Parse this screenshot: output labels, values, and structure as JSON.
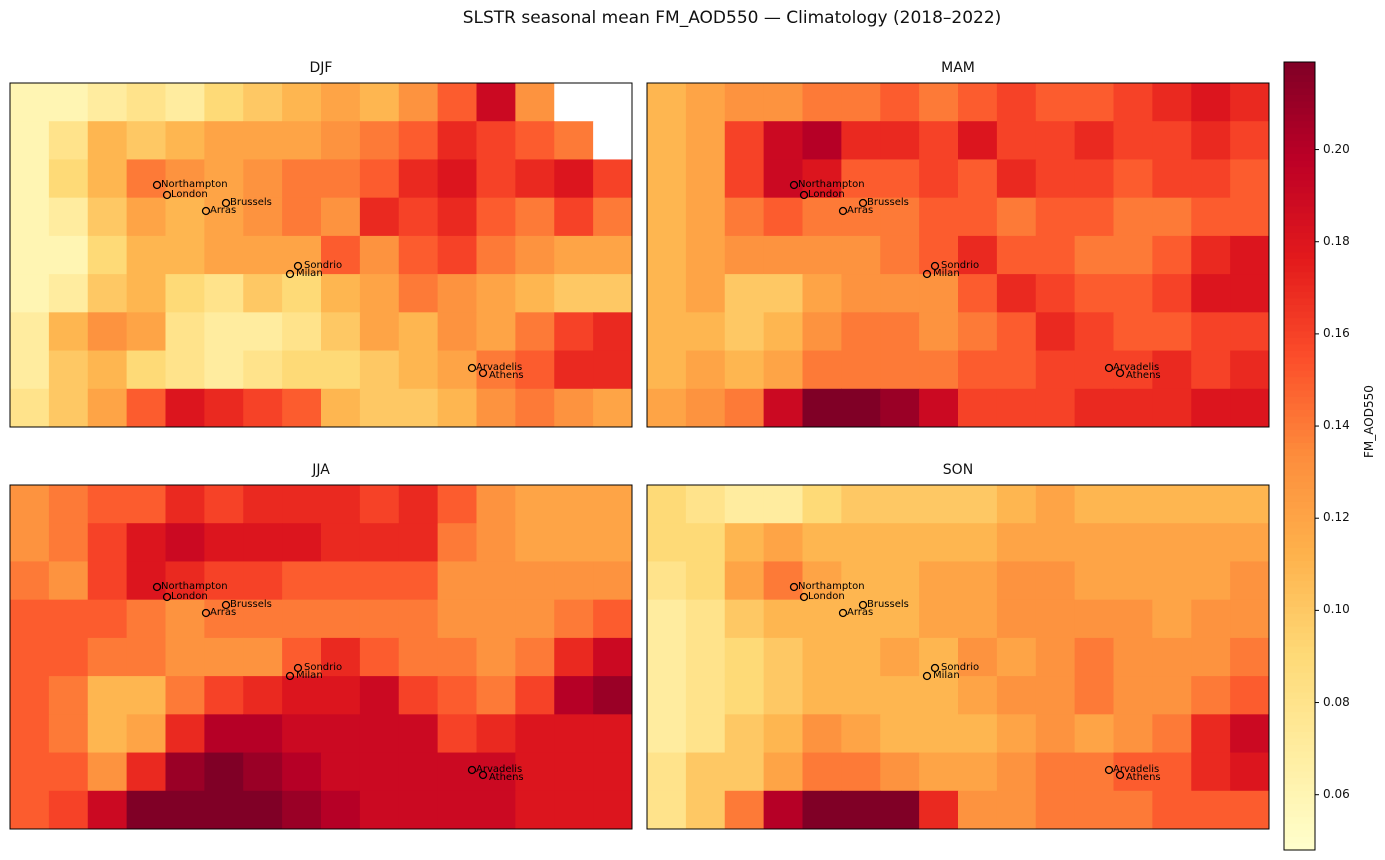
{
  "chart_data": {
    "type": "heatmap",
    "title": "SLSTR seasonal mean FM_AOD550 — Climatology (2018–2022)",
    "colorbar": {
      "label": "FM_AOD550",
      "range": [
        0.048,
        0.219
      ],
      "colormap": "YlOrRd",
      "ticks": [
        "0.06",
        "0.08",
        "0.10",
        "0.12",
        "0.14",
        "0.16",
        "0.18",
        "0.20"
      ],
      "tick_values": [
        0.06,
        0.08,
        0.1,
        0.12,
        0.14,
        0.16,
        0.18,
        0.2
      ]
    },
    "cities": [
      "Northampton",
      "London",
      "Brussels",
      "Arras",
      "Sondrio",
      "Milan",
      "Arvadelis",
      "Athens"
    ],
    "panels": [
      {
        "title": "DJF",
        "grid": [
          [
            0.06,
            0.06,
            0.07,
            0.08,
            0.07,
            0.09,
            0.1,
            0.11,
            0.12,
            0.11,
            0.13,
            0.15,
            0.19,
            0.13,
            null,
            null
          ],
          [
            0.06,
            0.08,
            0.11,
            0.1,
            0.11,
            0.12,
            0.12,
            0.12,
            0.13,
            0.14,
            0.15,
            0.17,
            0.16,
            0.15,
            0.14,
            null
          ],
          [
            0.06,
            0.09,
            0.11,
            0.14,
            0.13,
            0.12,
            0.13,
            0.14,
            0.14,
            0.15,
            0.17,
            0.18,
            0.16,
            0.17,
            0.18,
            0.16
          ],
          [
            0.06,
            0.07,
            0.1,
            0.12,
            0.11,
            0.12,
            0.13,
            0.14,
            0.13,
            0.17,
            0.16,
            0.17,
            0.15,
            0.14,
            0.16,
            0.14
          ],
          [
            0.06,
            0.06,
            0.09,
            0.11,
            0.11,
            0.12,
            0.12,
            0.12,
            0.15,
            0.13,
            0.15,
            0.16,
            0.14,
            0.13,
            0.12,
            0.12
          ],
          [
            0.06,
            0.07,
            0.1,
            0.11,
            0.09,
            0.08,
            0.1,
            0.09,
            0.11,
            0.12,
            0.14,
            0.13,
            0.12,
            0.11,
            0.1,
            0.1
          ],
          [
            0.07,
            0.11,
            0.13,
            0.12,
            0.08,
            0.07,
            0.07,
            0.08,
            0.1,
            0.12,
            0.11,
            0.13,
            0.12,
            0.14,
            0.16,
            0.17
          ],
          [
            0.07,
            0.1,
            0.11,
            0.09,
            0.08,
            0.07,
            0.08,
            0.09,
            0.09,
            0.1,
            0.11,
            0.12,
            0.14,
            0.15,
            0.17,
            0.17
          ],
          [
            0.08,
            0.1,
            0.12,
            0.15,
            0.18,
            0.17,
            0.16,
            0.15,
            0.11,
            0.1,
            0.1,
            0.11,
            0.13,
            0.14,
            0.13,
            0.12
          ]
        ]
      },
      {
        "title": "MAM",
        "grid": [
          [
            0.11,
            0.12,
            0.13,
            0.13,
            0.14,
            0.14,
            0.15,
            0.14,
            0.15,
            0.16,
            0.15,
            0.15,
            0.16,
            0.17,
            0.18,
            0.17
          ],
          [
            0.11,
            0.12,
            0.16,
            0.19,
            0.2,
            0.17,
            0.17,
            0.16,
            0.18,
            0.16,
            0.16,
            0.17,
            0.16,
            0.16,
            0.17,
            0.16
          ],
          [
            0.11,
            0.12,
            0.16,
            0.19,
            0.18,
            0.15,
            0.15,
            0.16,
            0.15,
            0.17,
            0.16,
            0.16,
            0.15,
            0.16,
            0.16,
            0.15
          ],
          [
            0.11,
            0.12,
            0.14,
            0.15,
            0.14,
            0.14,
            0.14,
            0.15,
            0.15,
            0.14,
            0.15,
            0.15,
            0.14,
            0.14,
            0.15,
            0.15
          ],
          [
            0.11,
            0.12,
            0.13,
            0.13,
            0.13,
            0.13,
            0.14,
            0.15,
            0.17,
            0.15,
            0.15,
            0.14,
            0.14,
            0.15,
            0.17,
            0.18
          ],
          [
            0.11,
            0.12,
            0.1,
            0.1,
            0.12,
            0.13,
            0.13,
            0.13,
            0.15,
            0.17,
            0.16,
            0.15,
            0.15,
            0.16,
            0.18,
            0.18
          ],
          [
            0.11,
            0.11,
            0.1,
            0.11,
            0.13,
            0.14,
            0.14,
            0.13,
            0.14,
            0.15,
            0.17,
            0.16,
            0.15,
            0.15,
            0.16,
            0.16
          ],
          [
            0.11,
            0.12,
            0.11,
            0.12,
            0.14,
            0.14,
            0.14,
            0.14,
            0.15,
            0.15,
            0.16,
            0.16,
            0.16,
            0.17,
            0.16,
            0.17
          ],
          [
            0.12,
            0.13,
            0.14,
            0.19,
            0.22,
            0.22,
            0.21,
            0.19,
            0.16,
            0.16,
            0.16,
            0.17,
            0.17,
            0.17,
            0.18,
            0.18
          ]
        ]
      },
      {
        "title": "JJA",
        "grid": [
          [
            0.13,
            0.14,
            0.15,
            0.15,
            0.17,
            0.16,
            0.17,
            0.17,
            0.17,
            0.16,
            0.17,
            0.15,
            0.13,
            0.12,
            0.12,
            0.12
          ],
          [
            0.13,
            0.14,
            0.16,
            0.18,
            0.19,
            0.18,
            0.18,
            0.18,
            0.17,
            0.17,
            0.17,
            0.14,
            0.13,
            0.12,
            0.12,
            0.12
          ],
          [
            0.14,
            0.13,
            0.16,
            0.18,
            0.17,
            0.16,
            0.16,
            0.15,
            0.15,
            0.15,
            0.15,
            0.13,
            0.13,
            0.13,
            0.13,
            0.13
          ],
          [
            0.15,
            0.15,
            0.15,
            0.14,
            0.13,
            0.14,
            0.14,
            0.14,
            0.14,
            0.14,
            0.14,
            0.13,
            0.13,
            0.13,
            0.14,
            0.15
          ],
          [
            0.15,
            0.15,
            0.14,
            0.14,
            0.13,
            0.13,
            0.13,
            0.15,
            0.17,
            0.15,
            0.14,
            0.14,
            0.13,
            0.14,
            0.17,
            0.19
          ],
          [
            0.15,
            0.14,
            0.11,
            0.11,
            0.14,
            0.16,
            0.17,
            0.18,
            0.18,
            0.19,
            0.16,
            0.15,
            0.14,
            0.16,
            0.2,
            0.21
          ],
          [
            0.15,
            0.14,
            0.11,
            0.12,
            0.17,
            0.2,
            0.2,
            0.19,
            0.19,
            0.19,
            0.19,
            0.16,
            0.17,
            0.18,
            0.18,
            0.18
          ],
          [
            0.15,
            0.15,
            0.13,
            0.17,
            0.21,
            0.22,
            0.21,
            0.2,
            0.19,
            0.19,
            0.19,
            0.19,
            0.19,
            0.18,
            0.18,
            0.18
          ],
          [
            0.15,
            0.16,
            0.19,
            0.22,
            0.22,
            0.22,
            0.22,
            0.21,
            0.2,
            0.19,
            0.19,
            0.19,
            0.19,
            0.18,
            0.18,
            0.18
          ]
        ]
      },
      {
        "title": "SON",
        "grid": [
          [
            0.09,
            0.08,
            0.07,
            0.07,
            0.09,
            0.1,
            0.1,
            0.1,
            0.1,
            0.11,
            0.12,
            0.11,
            0.11,
            0.11,
            0.11,
            0.11
          ],
          [
            0.09,
            0.09,
            0.11,
            0.12,
            0.11,
            0.11,
            0.11,
            0.11,
            0.11,
            0.12,
            0.12,
            0.12,
            0.12,
            0.12,
            0.12,
            0.12
          ],
          [
            0.08,
            0.09,
            0.12,
            0.14,
            0.12,
            0.11,
            0.11,
            0.12,
            0.12,
            0.13,
            0.13,
            0.12,
            0.12,
            0.12,
            0.12,
            0.13
          ],
          [
            0.07,
            0.08,
            0.1,
            0.11,
            0.11,
            0.11,
            0.11,
            0.12,
            0.12,
            0.13,
            0.13,
            0.13,
            0.13,
            0.12,
            0.13,
            0.13
          ],
          [
            0.07,
            0.08,
            0.09,
            0.1,
            0.11,
            0.11,
            0.12,
            0.11,
            0.13,
            0.12,
            0.13,
            0.14,
            0.13,
            0.13,
            0.13,
            0.14
          ],
          [
            0.07,
            0.08,
            0.09,
            0.1,
            0.11,
            0.11,
            0.11,
            0.11,
            0.12,
            0.13,
            0.13,
            0.14,
            0.13,
            0.13,
            0.14,
            0.15
          ],
          [
            0.07,
            0.08,
            0.1,
            0.11,
            0.13,
            0.12,
            0.11,
            0.11,
            0.11,
            0.12,
            0.13,
            0.12,
            0.13,
            0.14,
            0.17,
            0.19
          ],
          [
            0.08,
            0.1,
            0.1,
            0.12,
            0.14,
            0.14,
            0.13,
            0.12,
            0.12,
            0.13,
            0.14,
            0.14,
            0.15,
            0.15,
            0.17,
            0.18
          ],
          [
            0.08,
            0.1,
            0.14,
            0.2,
            0.22,
            0.22,
            0.22,
            0.17,
            0.13,
            0.13,
            0.14,
            0.14,
            0.14,
            0.15,
            0.15,
            0.15
          ]
        ]
      }
    ]
  }
}
